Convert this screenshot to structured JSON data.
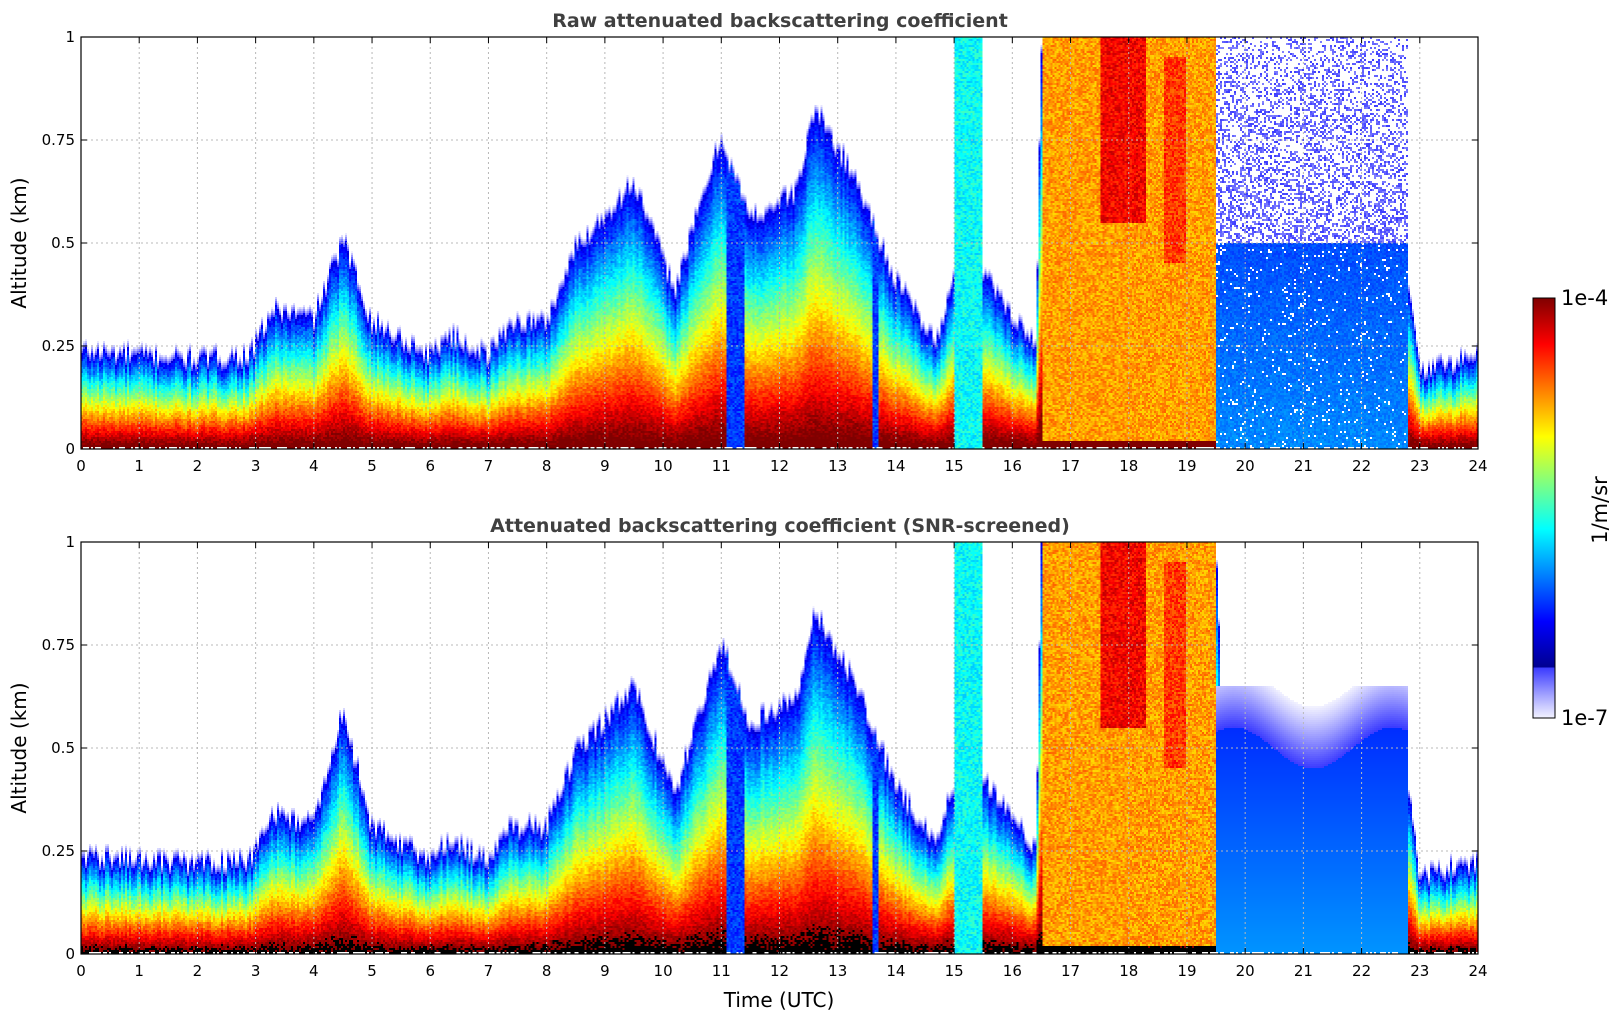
{
  "figure": {
    "colorbar_label": "1/m/sr",
    "colorbar_max_label": "1e-4",
    "colorbar_min_label": "1e-7",
    "xlabel_bottom": "Time (UTC)"
  },
  "palette": {
    "colormap": [
      "#00008f",
      "#0000ff",
      "#0080ff",
      "#00ffff",
      "#80ff80",
      "#ffff00",
      "#ff8000",
      "#ff0000",
      "#800000"
    ],
    "low_stops": [
      "#f2f2ff",
      "#c8c8ff",
      "#9a9aff",
      "#6a6aff",
      "#3a3aff"
    ],
    "saturated_raw": "#800000",
    "saturated_screened": "#000000"
  },
  "chart_data": [
    {
      "type": "heatmap",
      "title": "Raw attenuated backscattering coefficient",
      "xlabel": "",
      "ylabel": "Altitude (km)",
      "xlim": [
        0,
        24
      ],
      "ylim": [
        0,
        1
      ],
      "x_ticks": [
        0,
        1,
        2,
        3,
        4,
        5,
        6,
        7,
        8,
        9,
        10,
        11,
        12,
        13,
        14,
        15,
        16,
        17,
        18,
        19,
        20,
        21,
        22,
        23,
        24
      ],
      "x_tick_labels": [
        "0",
        "1",
        "2",
        "3",
        "4",
        "5",
        "6",
        "7",
        "8",
        "9",
        "10",
        "11",
        "12",
        "13",
        "14",
        "15",
        "16",
        "17",
        "18",
        "19",
        "20",
        "21",
        "22",
        "23",
        "24"
      ],
      "y_ticks": [
        0,
        0.25,
        0.5,
        0.75,
        1
      ],
      "y_tick_labels": [
        "0",
        "0.25",
        "0.5",
        "0.75",
        "1"
      ],
      "grid": true,
      "colorscale": "log",
      "zmin": 1e-07,
      "zmax": 0.0001,
      "mode": "raw",
      "layer_top_km": [
        [
          0,
          0.23
        ],
        [
          1,
          0.22
        ],
        [
          2,
          0.21
        ],
        [
          2.9,
          0.22
        ],
        [
          3.3,
          0.33
        ],
        [
          4,
          0.31
        ],
        [
          4.5,
          0.5
        ],
        [
          5,
          0.3
        ],
        [
          6,
          0.22
        ],
        [
          6.3,
          0.27
        ],
        [
          7,
          0.22
        ],
        [
          7.4,
          0.3
        ],
        [
          8,
          0.3
        ],
        [
          8.5,
          0.48
        ],
        [
          9.5,
          0.64
        ],
        [
          10.2,
          0.38
        ],
        [
          11,
          0.75
        ],
        [
          11.5,
          0.55
        ],
        [
          12.3,
          0.62
        ],
        [
          12.6,
          0.82
        ],
        [
          13.3,
          0.65
        ],
        [
          14,
          0.4
        ],
        [
          14.7,
          0.25
        ],
        [
          15.2,
          0.52
        ],
        [
          15.6,
          0.4
        ],
        [
          16.4,
          0.24
        ],
        [
          16.5,
          1.0
        ],
        [
          19.5,
          1.0
        ],
        [
          19.6,
          0.55
        ],
        [
          21,
          0.48
        ],
        [
          22.3,
          0.52
        ],
        [
          22.8,
          0.4
        ],
        [
          23,
          0.18
        ],
        [
          24,
          0.22
        ]
      ],
      "data_gaps_hours": [
        [
          11.1,
          11.4
        ],
        [
          13.6,
          13.7
        ]
      ],
      "cloud_layers": [
        {
          "x": [
            16.5,
            19.5
          ],
          "y": [
            0.02,
            1.0
          ],
          "level": 0.72
        },
        {
          "x": [
            17.5,
            18.3
          ],
          "y": [
            0.55,
            1.0
          ],
          "level": 0.88
        },
        {
          "x": [
            18.6,
            19.0
          ],
          "y": [
            0.45,
            0.95
          ],
          "level": 0.82
        },
        {
          "x": [
            15.0,
            15.5
          ],
          "y": [
            0.0,
            1.0
          ],
          "level": 0.38
        }
      ],
      "noise_region": {
        "x": [
          19.5,
          22.8
        ],
        "y": [
          0.0,
          1.0
        ]
      }
    },
    {
      "type": "heatmap",
      "title": "Attenuated backscattering coefficient (SNR-screened)",
      "xlabel": "Time (UTC)",
      "ylabel": "Altitude (km)",
      "xlim": [
        0,
        24
      ],
      "ylim": [
        0,
        1
      ],
      "x_ticks": [
        0,
        1,
        2,
        3,
        4,
        5,
        6,
        7,
        8,
        9,
        10,
        11,
        12,
        13,
        14,
        15,
        16,
        17,
        18,
        19,
        20,
        21,
        22,
        23,
        24
      ],
      "x_tick_labels": [
        "0",
        "1",
        "2",
        "3",
        "4",
        "5",
        "6",
        "7",
        "8",
        "9",
        "10",
        "11",
        "12",
        "13",
        "14",
        "15",
        "16",
        "17",
        "18",
        "19",
        "20",
        "21",
        "22",
        "23",
        "24"
      ],
      "y_ticks": [
        0,
        0.25,
        0.5,
        0.75,
        1
      ],
      "y_tick_labels": [
        "0",
        "0.25",
        "0.5",
        "0.75",
        "1"
      ],
      "grid": true,
      "colorscale": "log",
      "zmin": 1e-07,
      "zmax": 0.0001,
      "mode": "screened",
      "layer_top_km": [
        [
          0,
          0.23
        ],
        [
          1,
          0.22
        ],
        [
          2,
          0.21
        ],
        [
          2.9,
          0.22
        ],
        [
          3.3,
          0.33
        ],
        [
          4,
          0.31
        ],
        [
          4.5,
          0.58
        ],
        [
          5,
          0.3
        ],
        [
          6,
          0.22
        ],
        [
          6.3,
          0.27
        ],
        [
          7,
          0.22
        ],
        [
          7.4,
          0.3
        ],
        [
          8,
          0.3
        ],
        [
          8.5,
          0.48
        ],
        [
          9.5,
          0.64
        ],
        [
          10.2,
          0.38
        ],
        [
          11,
          0.75
        ],
        [
          11.5,
          0.55
        ],
        [
          12.3,
          0.62
        ],
        [
          12.6,
          0.82
        ],
        [
          13.3,
          0.65
        ],
        [
          14,
          0.4
        ],
        [
          14.7,
          0.25
        ],
        [
          15.2,
          0.52
        ],
        [
          15.6,
          0.4
        ],
        [
          16.4,
          0.24
        ],
        [
          16.5,
          1.0
        ],
        [
          19.5,
          1.0
        ],
        [
          19.6,
          0.58
        ],
        [
          21,
          0.55
        ],
        [
          22.3,
          0.52
        ],
        [
          22.8,
          0.4
        ],
        [
          23,
          0.18
        ],
        [
          24,
          0.22
        ]
      ],
      "data_gaps_hours": [
        [
          11.1,
          11.4
        ],
        [
          13.6,
          13.7
        ]
      ],
      "cloud_layers": [
        {
          "x": [
            16.5,
            19.5
          ],
          "y": [
            0.02,
            1.0
          ],
          "level": 0.72
        },
        {
          "x": [
            17.5,
            18.3
          ],
          "y": [
            0.55,
            1.0
          ],
          "level": 0.88
        },
        {
          "x": [
            18.6,
            19.0
          ],
          "y": [
            0.45,
            0.95
          ],
          "level": 0.82
        },
        {
          "x": [
            15.0,
            15.5
          ],
          "y": [
            0.0,
            1.0
          ],
          "level": 0.38
        }
      ],
      "noise_region": {
        "x": [
          19.5,
          22.8
        ],
        "y": [
          0.0,
          0.65
        ]
      }
    }
  ]
}
